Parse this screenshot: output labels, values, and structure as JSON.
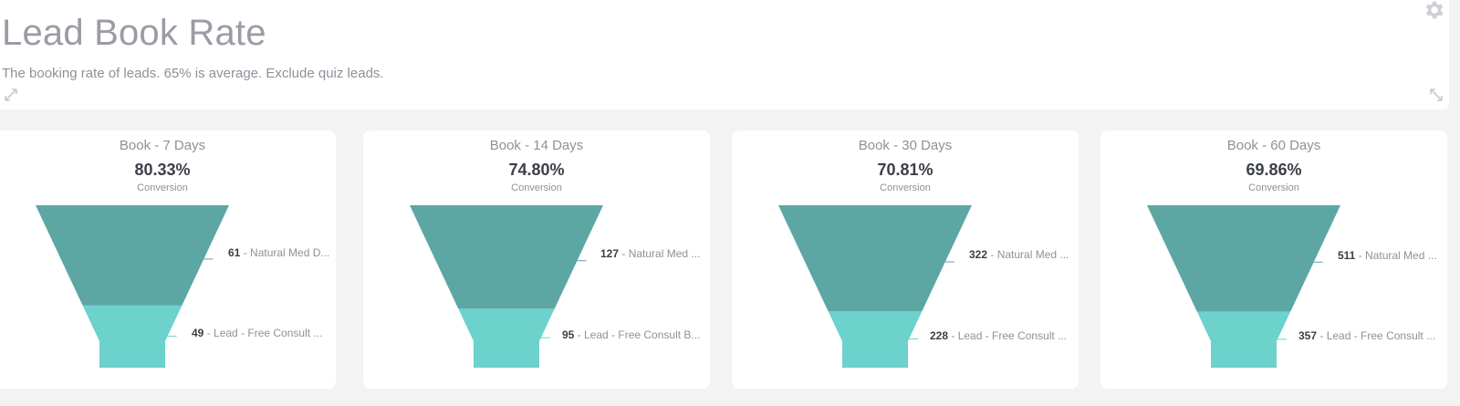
{
  "header": {
    "title": "Lead Book Rate",
    "subtitle": "The booking rate of leads. 65% is average. Exclude quiz leads."
  },
  "icons": {
    "gear": "gear-icon",
    "expand_left": "expand-icon",
    "expand_right": "collapse-icon"
  },
  "colors": {
    "top_stage": "#5ca6a3",
    "bottom_stage": "#6dd1cc",
    "page_bg": "#f3f3f3",
    "card_bg": "#ffffff"
  },
  "panels": [
    {
      "title": "Book - 7 Days",
      "value": "80.33%",
      "sub": "Conversion",
      "stages": [
        {
          "count": "61",
          "label": " - Natural Med D..."
        },
        {
          "count": "49",
          "label": " - Lead - Free Consult ..."
        }
      ],
      "ratio": 0.8033
    },
    {
      "title": "Book - 14 Days",
      "value": "74.80%",
      "sub": "Conversion",
      "stages": [
        {
          "count": "127",
          "label": " - Natural Med ..."
        },
        {
          "count": "95",
          "label": " - Lead - Free Consult B..."
        }
      ],
      "ratio": 0.748
    },
    {
      "title": "Book - 30 Days",
      "value": "70.81%",
      "sub": "Conversion",
      "stages": [
        {
          "count": "322",
          "label": " - Natural Med ..."
        },
        {
          "count": "228",
          "label": " - Lead - Free Consult ..."
        }
      ],
      "ratio": 0.7081
    },
    {
      "title": "Book - 60 Days",
      "value": "69.86%",
      "sub": "Conversion",
      "stages": [
        {
          "count": "511",
          "label": " - Natural Med ..."
        },
        {
          "count": "357",
          "label": " - Lead - Free Consult ..."
        }
      ],
      "ratio": 0.6986
    }
  ]
}
